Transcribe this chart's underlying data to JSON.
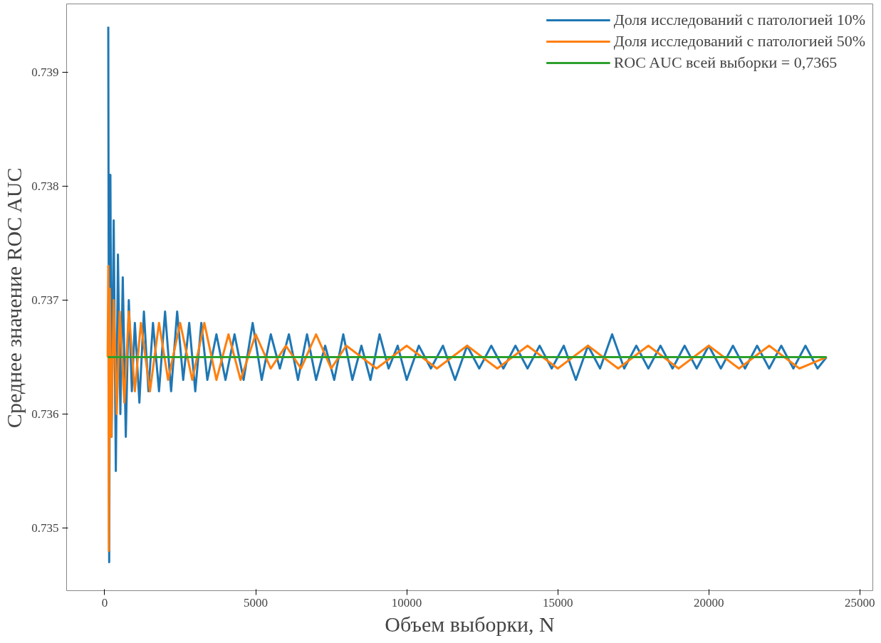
{
  "chart_data": {
    "type": "line",
    "xlabel": "Объем выборки, N",
    "ylabel": "Среднее значение ROC AUC",
    "xlim": [
      -1260,
      25430
    ],
    "ylim": [
      0.73445,
      0.7396
    ],
    "xticks": [
      0,
      5000,
      10000,
      15000,
      20000,
      25000
    ],
    "yticks": [
      0.735,
      0.736,
      0.737,
      0.738,
      0.739
    ],
    "grid": false,
    "legend": "top right",
    "marker": "none",
    "line_style": "solid",
    "series": [
      {
        "name": "Доля исследований с патологией 10%",
        "color": "#1f77b4",
        "x": [
          120,
          150,
          190,
          230,
          300,
          370,
          440,
          520,
          600,
          700,
          800,
          900,
          1000,
          1150,
          1300,
          1450,
          1600,
          1800,
          2000,
          2200,
          2400,
          2600,
          2800,
          3000,
          3200,
          3400,
          3700,
          4000,
          4300,
          4600,
          4900,
          5200,
          5500,
          5800,
          6100,
          6400,
          6700,
          7000,
          7300,
          7600,
          7900,
          8200,
          8500,
          8800,
          9100,
          9400,
          9700,
          10000,
          10400,
          10800,
          11200,
          11600,
          12000,
          12400,
          12800,
          13200,
          13600,
          14000,
          14400,
          14800,
          15200,
          15600,
          16000,
          16400,
          16800,
          17200,
          17600,
          18000,
          18400,
          18800,
          19200,
          19600,
          20000,
          20400,
          20800,
          21200,
          21600,
          22000,
          22400,
          22800,
          23200,
          23600,
          23900
        ],
        "values": [
          0.7394,
          0.7347,
          0.7381,
          0.7358,
          0.7377,
          0.7355,
          0.7374,
          0.736,
          0.7372,
          0.7358,
          0.737,
          0.7362,
          0.7368,
          0.7361,
          0.7369,
          0.7362,
          0.7368,
          0.7362,
          0.7369,
          0.7362,
          0.7369,
          0.7363,
          0.7368,
          0.7362,
          0.7368,
          0.7363,
          0.7367,
          0.7363,
          0.7367,
          0.7363,
          0.7368,
          0.7363,
          0.7367,
          0.7364,
          0.7367,
          0.7363,
          0.7367,
          0.7363,
          0.7366,
          0.7363,
          0.7367,
          0.7363,
          0.7366,
          0.7363,
          0.7367,
          0.7364,
          0.7366,
          0.7363,
          0.7366,
          0.7364,
          0.7366,
          0.7363,
          0.7366,
          0.7364,
          0.7366,
          0.7364,
          0.7366,
          0.7364,
          0.7366,
          0.7364,
          0.7366,
          0.7363,
          0.7366,
          0.7364,
          0.7367,
          0.7364,
          0.7366,
          0.7364,
          0.7366,
          0.7364,
          0.7366,
          0.7364,
          0.7366,
          0.7364,
          0.7366,
          0.7364,
          0.7366,
          0.7364,
          0.7366,
          0.7364,
          0.7366,
          0.7364,
          0.7365
        ]
      },
      {
        "name": "Доля исследований с патологией 50%",
        "color": "#ff7f0e",
        "x": [
          100,
          120,
          140,
          170,
          220,
          300,
          400,
          500,
          650,
          800,
          1000,
          1200,
          1500,
          1800,
          2100,
          2500,
          2900,
          3300,
          3700,
          4100,
          4500,
          5000,
          5500,
          6000,
          6500,
          7000,
          7500,
          8000,
          9000,
          10000,
          11000,
          12000,
          13000,
          14000,
          15000,
          16000,
          17000,
          18000,
          19000,
          20000,
          21000,
          22000,
          23000,
          23900
        ],
        "values": [
          0.7365,
          0.7373,
          0.7348,
          0.7371,
          0.7358,
          0.737,
          0.736,
          0.7369,
          0.7361,
          0.7369,
          0.7362,
          0.7368,
          0.7362,
          0.7368,
          0.7363,
          0.7368,
          0.7363,
          0.7368,
          0.7363,
          0.7367,
          0.7363,
          0.7367,
          0.7364,
          0.7366,
          0.7364,
          0.7367,
          0.7364,
          0.7366,
          0.7364,
          0.7366,
          0.7364,
          0.7366,
          0.7364,
          0.7366,
          0.7364,
          0.7366,
          0.7364,
          0.7366,
          0.7364,
          0.7366,
          0.7364,
          0.7366,
          0.7364,
          0.7365
        ]
      },
      {
        "name": "ROC AUC всей выборки = 0,7365",
        "color": "#2ca02c",
        "x": [
          100,
          23900
        ],
        "values": [
          0.7365,
          0.7365
        ]
      }
    ]
  }
}
